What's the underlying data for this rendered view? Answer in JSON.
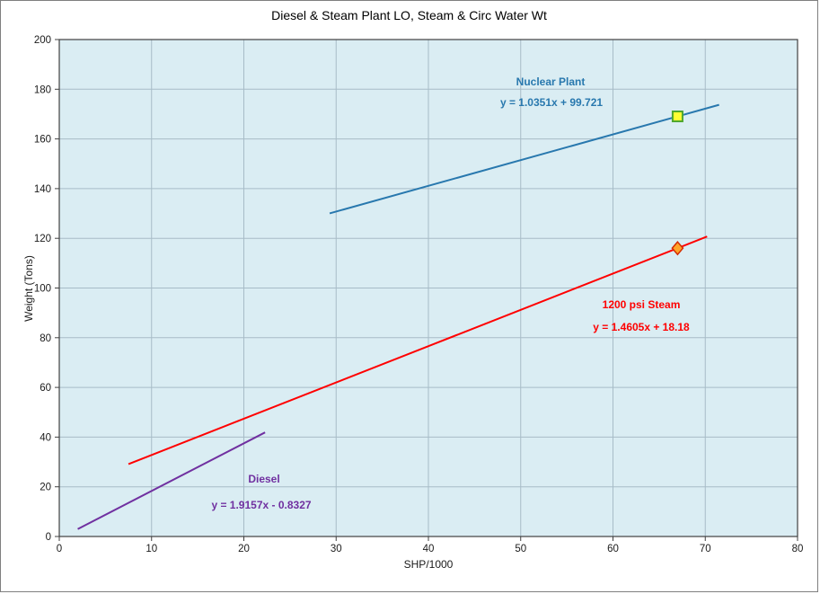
{
  "chart_data": {
    "type": "line",
    "title": "Diesel & Steam Plant LO, Steam & Circ Water Wt",
    "xlabel": "SHP/1000",
    "ylabel": "Weight (Tons)",
    "xlim": [
      0,
      80
    ],
    "ylim": [
      0,
      200
    ],
    "x_ticks": [
      0,
      10,
      20,
      30,
      40,
      50,
      60,
      70,
      80
    ],
    "y_ticks": [
      0,
      20,
      40,
      60,
      80,
      100,
      120,
      140,
      160,
      180,
      200
    ],
    "grid": true,
    "legend_position": "none",
    "colors": {
      "plot_bg": "#DAEDF3",
      "grid": "#A7BCC7",
      "axis": "#404040",
      "tick_text": "#1a1a1a"
    },
    "series": [
      {
        "name": "Nuclear Plant",
        "equation": "y = 1.0351x + 99.721",
        "color": "#2878AE",
        "x": [
          29.3,
          71.5
        ],
        "y": [
          130.05,
          173.73
        ],
        "marker": {
          "shape": "square",
          "x": 67,
          "y": 169.07,
          "fill": "#FFFF33",
          "stroke": "#4EA72E"
        }
      },
      {
        "name": "1200 psi Steam",
        "equation": "y = 1.4605x + 18.18",
        "color": "#FF0000",
        "x": [
          7.5,
          70.2
        ],
        "y": [
          29.13,
          120.71
        ],
        "marker": {
          "shape": "diamond",
          "x": 67,
          "y": 116.03,
          "fill": "#FFA428",
          "stroke": "#D42A00"
        }
      },
      {
        "name": "Diesel",
        "equation": "y = 1.9157x - 0.8327",
        "color": "#7030A0",
        "x": [
          2.0,
          22.3
        ],
        "y": [
          3.0,
          41.89
        ],
        "marker": null
      }
    ]
  }
}
